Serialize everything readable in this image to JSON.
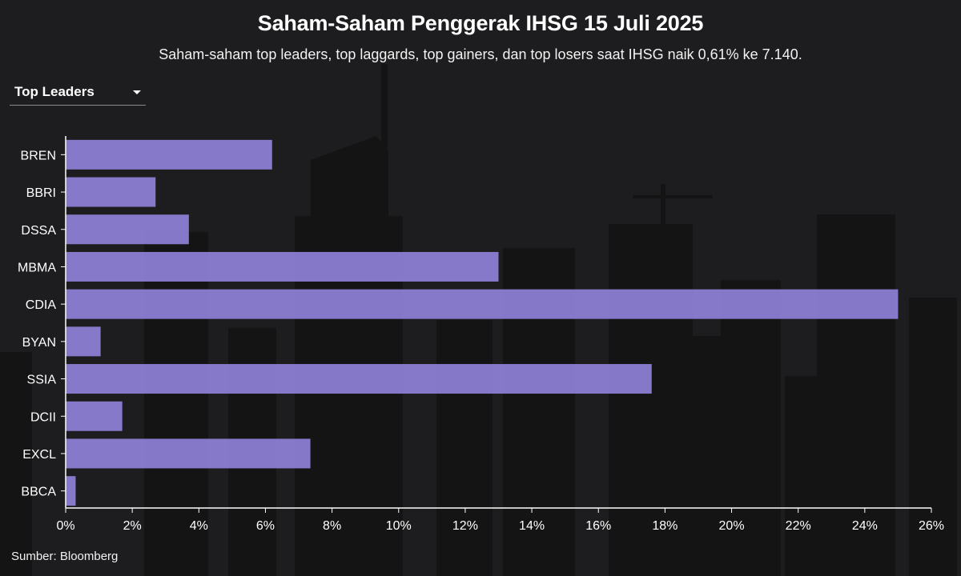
{
  "header": {
    "title": "Saham-Saham Penggerak IHSG 15 Juli 2025",
    "subtitle": "Saham-saham top leaders, top laggards, top gainers, dan top losers saat IHSG naik 0,61% ke 7.140."
  },
  "dropdown": {
    "selected": "Top Leaders"
  },
  "footer": {
    "source": "Sumber: Bloomberg"
  },
  "colors": {
    "bar": "#8f80d6",
    "background": "#1d1c1e",
    "axis": "#ffffff"
  },
  "chart_data": {
    "type": "bar",
    "orientation": "horizontal",
    "categories": [
      "BREN",
      "BBRI",
      "DSSA",
      "MBMA",
      "CDIA",
      "BYAN",
      "SSIA",
      "DCII",
      "EXCL",
      "BBCA"
    ],
    "values": [
      6.2,
      2.7,
      3.7,
      13.0,
      25.0,
      1.05,
      17.6,
      1.7,
      7.35,
      0.3
    ],
    "xlim": [
      0,
      26
    ],
    "x_ticks": [
      0,
      2,
      4,
      6,
      8,
      10,
      12,
      14,
      16,
      18,
      20,
      22,
      24,
      26
    ],
    "x_tick_labels": [
      "0%",
      "2%",
      "4%",
      "6%",
      "8%",
      "10%",
      "12%",
      "14%",
      "16%",
      "18%",
      "20%",
      "22%",
      "24%",
      "26%"
    ],
    "grid": false,
    "legend": "none"
  }
}
